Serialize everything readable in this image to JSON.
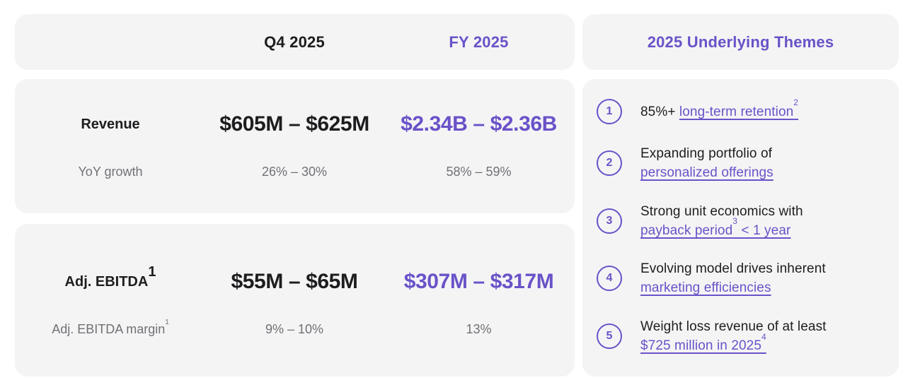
{
  "colors": {
    "accent": "#6A52C8",
    "cardbg": "#F4F4F5",
    "dark": "#1D1D1F",
    "gray": "#717176",
    "page_bg": "#FFFFFF"
  },
  "guidance": {
    "columns": [
      "Q4 2025",
      "FY 2025"
    ],
    "rows": [
      {
        "label": "Revenue",
        "label_sup": "",
        "q4": "$605M – $625M",
        "fy": "$2.34B – $2.36B",
        "sub_label": "YoY growth",
        "sub_label_sup": "",
        "sub_q4": "26% – 30%",
        "sub_fy": "58% – 59%"
      },
      {
        "label": "Adj. EBITDA",
        "label_sup": "1",
        "q4": "$55M – $65M",
        "fy": "$307M – $317M",
        "sub_label": "Adj. EBITDA margin",
        "sub_label_sup": "1",
        "sub_q4": "9% – 10%",
        "sub_fy": "13%"
      }
    ]
  },
  "themes": {
    "title": "2025 Underlying Themes",
    "items": [
      {
        "number": "1",
        "text": "85%+",
        "link_text": "long-term retention",
        "link_sup": "2",
        "link_tail": ""
      },
      {
        "number": "2",
        "text": "Expanding portfolio of",
        "link_text": "personalized offerings",
        "link_sup": "",
        "link_tail": ""
      },
      {
        "number": "3",
        "text": "Strong unit economics with",
        "link_text": "payback period",
        "link_sup": "3",
        "link_tail": " < 1 year"
      },
      {
        "number": "4",
        "text": "Evolving model drives inherent",
        "link_text": "marketing efficiencies",
        "link_sup": "",
        "link_tail": ""
      },
      {
        "number": "5",
        "text": "Weight loss revenue of at least",
        "link_text": "$725 million in 2025",
        "link_sup": "4",
        "link_tail": ""
      }
    ]
  }
}
